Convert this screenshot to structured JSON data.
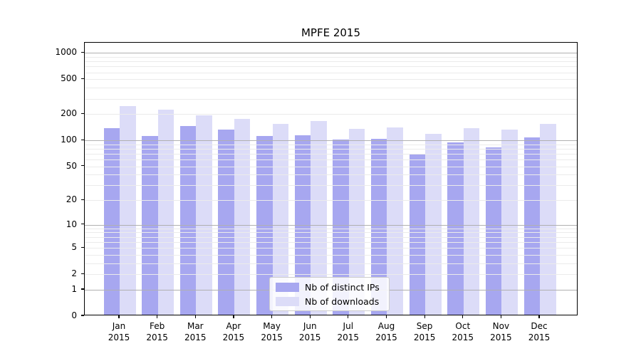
{
  "chart_data": {
    "type": "bar",
    "title": "MPFE 2015",
    "categories": [
      "Jan",
      "Feb",
      "Mar",
      "Apr",
      "May",
      "Jun",
      "Jul",
      "Aug",
      "Sep",
      "Oct",
      "Nov",
      "Dec"
    ],
    "year": "2015",
    "series": [
      {
        "name": "Nb of distinct IPs",
        "color": "#a7a7f0",
        "values": [
          133,
          108,
          141,
          127,
          109,
          111,
          99,
          100,
          67,
          92,
          80,
          105
        ]
      },
      {
        "name": "Nb of downloads",
        "color": "#dcdcf8",
        "values": [
          240,
          218,
          185,
          170,
          149,
          160,
          130,
          135,
          114,
          132,
          128,
          150
        ]
      }
    ],
    "yscale": "log1p",
    "yticks": [
      0,
      1,
      2,
      5,
      10,
      20,
      50,
      100,
      200,
      500,
      1000
    ],
    "ylim": [
      0,
      1240
    ],
    "grid": "on",
    "legend_position": "lower center",
    "colors": {
      "major_grid": "#b0b0b0",
      "minor_grid": "#ebebeb",
      "spine": "#000000",
      "background": "#ffffff"
    }
  }
}
